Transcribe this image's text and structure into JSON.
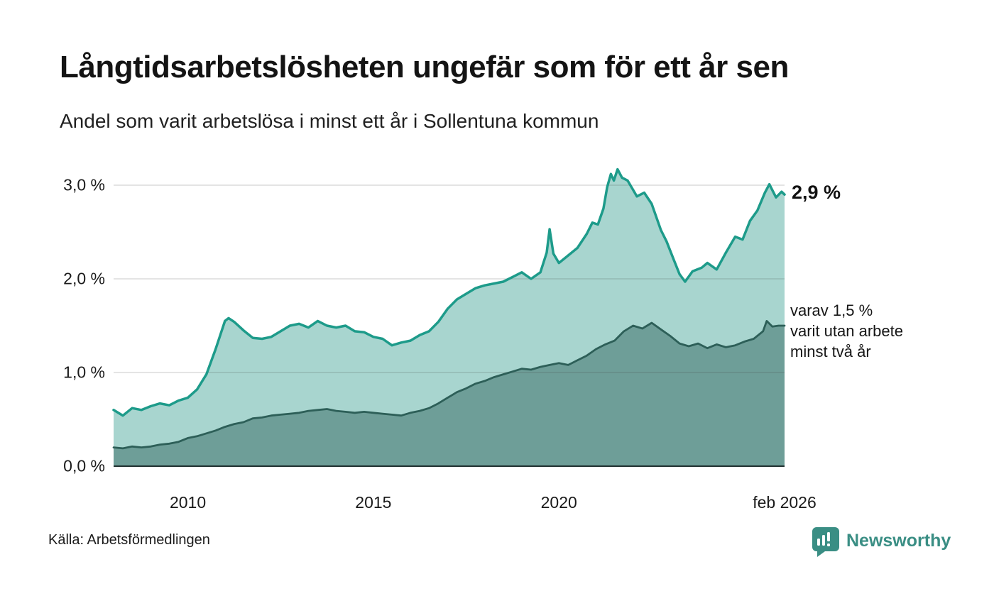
{
  "header": {
    "title": "Långtidsarbetslösheten ungefär som för ett år sen",
    "subtitle": "Andel som varit arbetslösa i minst ett år i Sollentuna kommun"
  },
  "annotations": {
    "latest_total": "2,9 %",
    "two_year_note": "varav 1,5 %\nvarit utan arbete\nminst två år"
  },
  "footer": {
    "source": "Källa: Arbetsförmedlingen",
    "brand": "Newsworthy"
  },
  "colors": {
    "total_line": "#1d9b8a",
    "total_fill": "#a8d5cf",
    "two_year_line": "#2d5f58",
    "two_year_fill": "#6e9e98",
    "gridline": "rgba(60,60,60,0.18)",
    "axis_line": "#203030",
    "text": "#1a1a1a",
    "brand": "#3a8e84"
  },
  "chart_data": {
    "type": "area",
    "title": "Långtidsarbetslösheten ungefär som för ett år sen",
    "subtitle": "Andel som varit arbetslösa i minst ett år i Sollentuna kommun",
    "unit": "%",
    "xlabel": "",
    "ylabel": "",
    "xlim": [
      2008.0,
      2026.08
    ],
    "ylim": [
      0,
      3.3
    ],
    "grid": "horizontal",
    "legend_position": "inline-annotations",
    "x_ticks": [
      {
        "value": 2010,
        "label": "2010"
      },
      {
        "value": 2015,
        "label": "2015"
      },
      {
        "value": 2020,
        "label": "2020"
      },
      {
        "value": 2026.08,
        "label": "feb 2026"
      }
    ],
    "y_ticks": [
      {
        "value": 0,
        "label": "0,0 %"
      },
      {
        "value": 1,
        "label": "1,0 %"
      },
      {
        "value": 2,
        "label": "2,0 %"
      },
      {
        "value": 3,
        "label": "3,0 %"
      }
    ],
    "series": [
      {
        "name": "Andel arbetslösa minst ett år",
        "latest_value": 2.9,
        "line_color": "#1d9b8a",
        "fill_color": "#a8d5cf",
        "points": [
          [
            2008.0,
            0.6
          ],
          [
            2008.25,
            0.54
          ],
          [
            2008.5,
            0.62
          ],
          [
            2008.75,
            0.6
          ],
          [
            2009.0,
            0.64
          ],
          [
            2009.25,
            0.67
          ],
          [
            2009.5,
            0.65
          ],
          [
            2009.75,
            0.7
          ],
          [
            2010.0,
            0.73
          ],
          [
            2010.25,
            0.82
          ],
          [
            2010.5,
            0.98
          ],
          [
            2010.75,
            1.25
          ],
          [
            2011.0,
            1.55
          ],
          [
            2011.1,
            1.58
          ],
          [
            2011.25,
            1.54
          ],
          [
            2011.5,
            1.45
          ],
          [
            2011.75,
            1.37
          ],
          [
            2012.0,
            1.36
          ],
          [
            2012.25,
            1.38
          ],
          [
            2012.5,
            1.44
          ],
          [
            2012.75,
            1.5
          ],
          [
            2013.0,
            1.52
          ],
          [
            2013.25,
            1.48
          ],
          [
            2013.5,
            1.55
          ],
          [
            2013.75,
            1.5
          ],
          [
            2014.0,
            1.48
          ],
          [
            2014.25,
            1.5
          ],
          [
            2014.5,
            1.44
          ],
          [
            2014.75,
            1.43
          ],
          [
            2015.0,
            1.38
          ],
          [
            2015.25,
            1.36
          ],
          [
            2015.5,
            1.29
          ],
          [
            2015.75,
            1.32
          ],
          [
            2016.0,
            1.34
          ],
          [
            2016.25,
            1.4
          ],
          [
            2016.5,
            1.44
          ],
          [
            2016.75,
            1.54
          ],
          [
            2017.0,
            1.68
          ],
          [
            2017.25,
            1.78
          ],
          [
            2017.5,
            1.84
          ],
          [
            2017.75,
            1.9
          ],
          [
            2018.0,
            1.93
          ],
          [
            2018.25,
            1.95
          ],
          [
            2018.5,
            1.97
          ],
          [
            2018.75,
            2.02
          ],
          [
            2019.0,
            2.07
          ],
          [
            2019.25,
            2.0
          ],
          [
            2019.5,
            2.07
          ],
          [
            2019.67,
            2.28
          ],
          [
            2019.75,
            2.53
          ],
          [
            2019.85,
            2.27
          ],
          [
            2020.0,
            2.17
          ],
          [
            2020.25,
            2.25
          ],
          [
            2020.5,
            2.33
          ],
          [
            2020.75,
            2.48
          ],
          [
            2020.9,
            2.6
          ],
          [
            2021.05,
            2.58
          ],
          [
            2021.2,
            2.75
          ],
          [
            2021.3,
            2.98
          ],
          [
            2021.4,
            3.12
          ],
          [
            2021.48,
            3.05
          ],
          [
            2021.58,
            3.17
          ],
          [
            2021.7,
            3.08
          ],
          [
            2021.85,
            3.05
          ],
          [
            2022.0,
            2.95
          ],
          [
            2022.1,
            2.88
          ],
          [
            2022.3,
            2.92
          ],
          [
            2022.5,
            2.8
          ],
          [
            2022.75,
            2.52
          ],
          [
            2022.9,
            2.4
          ],
          [
            2023.1,
            2.2
          ],
          [
            2023.25,
            2.05
          ],
          [
            2023.4,
            1.97
          ],
          [
            2023.6,
            2.08
          ],
          [
            2023.85,
            2.12
          ],
          [
            2024.0,
            2.17
          ],
          [
            2024.25,
            2.1
          ],
          [
            2024.5,
            2.28
          ],
          [
            2024.75,
            2.45
          ],
          [
            2024.95,
            2.42
          ],
          [
            2025.15,
            2.62
          ],
          [
            2025.35,
            2.73
          ],
          [
            2025.55,
            2.92
          ],
          [
            2025.67,
            3.01
          ],
          [
            2025.85,
            2.87
          ],
          [
            2026.0,
            2.93
          ],
          [
            2026.08,
            2.9
          ]
        ]
      },
      {
        "name": "Varav utan arbete minst två år",
        "latest_value": 1.5,
        "line_color": "#2d5f58",
        "fill_color": "#6e9e98",
        "points": [
          [
            2008.0,
            0.2
          ],
          [
            2008.25,
            0.19
          ],
          [
            2008.5,
            0.21
          ],
          [
            2008.75,
            0.2
          ],
          [
            2009.0,
            0.21
          ],
          [
            2009.25,
            0.23
          ],
          [
            2009.5,
            0.24
          ],
          [
            2009.75,
            0.26
          ],
          [
            2010.0,
            0.3
          ],
          [
            2010.25,
            0.32
          ],
          [
            2010.5,
            0.35
          ],
          [
            2010.75,
            0.38
          ],
          [
            2011.0,
            0.42
          ],
          [
            2011.25,
            0.45
          ],
          [
            2011.5,
            0.47
          ],
          [
            2011.75,
            0.51
          ],
          [
            2012.0,
            0.52
          ],
          [
            2012.25,
            0.54
          ],
          [
            2012.5,
            0.55
          ],
          [
            2012.75,
            0.56
          ],
          [
            2013.0,
            0.57
          ],
          [
            2013.25,
            0.59
          ],
          [
            2013.5,
            0.6
          ],
          [
            2013.75,
            0.61
          ],
          [
            2014.0,
            0.59
          ],
          [
            2014.25,
            0.58
          ],
          [
            2014.5,
            0.57
          ],
          [
            2014.75,
            0.58
          ],
          [
            2015.0,
            0.57
          ],
          [
            2015.25,
            0.56
          ],
          [
            2015.5,
            0.55
          ],
          [
            2015.75,
            0.54
          ],
          [
            2016.0,
            0.57
          ],
          [
            2016.25,
            0.59
          ],
          [
            2016.5,
            0.62
          ],
          [
            2016.75,
            0.67
          ],
          [
            2017.0,
            0.73
          ],
          [
            2017.25,
            0.79
          ],
          [
            2017.5,
            0.83
          ],
          [
            2017.75,
            0.88
          ],
          [
            2018.0,
            0.91
          ],
          [
            2018.25,
            0.95
          ],
          [
            2018.5,
            0.98
          ],
          [
            2018.75,
            1.01
          ],
          [
            2019.0,
            1.04
          ],
          [
            2019.25,
            1.03
          ],
          [
            2019.5,
            1.06
          ],
          [
            2019.75,
            1.08
          ],
          [
            2020.0,
            1.1
          ],
          [
            2020.25,
            1.08
          ],
          [
            2020.5,
            1.13
          ],
          [
            2020.75,
            1.18
          ],
          [
            2021.0,
            1.25
          ],
          [
            2021.25,
            1.3
          ],
          [
            2021.5,
            1.34
          ],
          [
            2021.75,
            1.44
          ],
          [
            2022.0,
            1.5
          ],
          [
            2022.25,
            1.47
          ],
          [
            2022.5,
            1.53
          ],
          [
            2022.75,
            1.46
          ],
          [
            2023.0,
            1.39
          ],
          [
            2023.25,
            1.31
          ],
          [
            2023.5,
            1.28
          ],
          [
            2023.75,
            1.31
          ],
          [
            2024.0,
            1.26
          ],
          [
            2024.25,
            1.3
          ],
          [
            2024.5,
            1.27
          ],
          [
            2024.75,
            1.29
          ],
          [
            2025.0,
            1.33
          ],
          [
            2025.25,
            1.36
          ],
          [
            2025.5,
            1.44
          ],
          [
            2025.6,
            1.55
          ],
          [
            2025.75,
            1.49
          ],
          [
            2025.92,
            1.5
          ],
          [
            2026.08,
            1.5
          ]
        ]
      }
    ]
  }
}
